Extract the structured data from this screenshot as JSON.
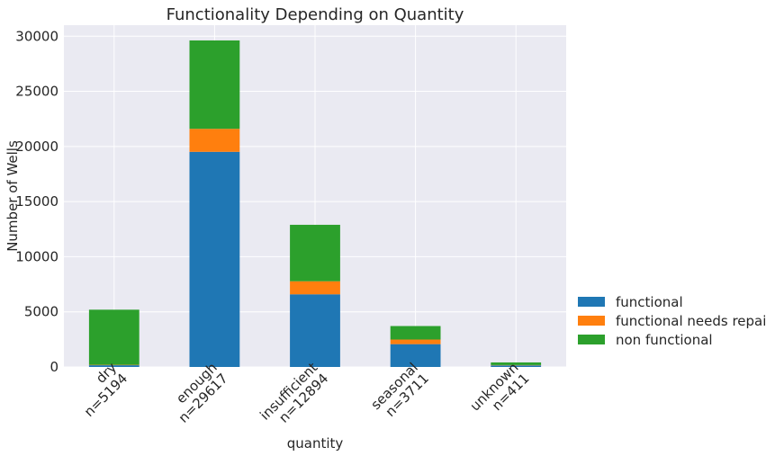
{
  "chart_data": {
    "type": "bar",
    "stacked": true,
    "title": "Functionality Depending on Quantity",
    "xlabel": "quantity",
    "ylabel": "Number of Wells",
    "categories": [
      "dry\nn=5194",
      "enough\nn=29617",
      "insufficient\nn=12894",
      "seasonal\nn=3711",
      "unknown\nn=411"
    ],
    "series": [
      {
        "name": "functional",
        "color": "#1f77b4",
        "values": [
          157,
          19514,
          6588,
          2069,
          144
        ]
      },
      {
        "name": "functional needs repair",
        "color": "#ff7f0e",
        "values": [
          37,
          2084,
          1185,
          417,
          28
        ]
      },
      {
        "name": "non functional",
        "color": "#2ca02c",
        "values": [
          5000,
          8019,
          5121,
          1225,
          239
        ]
      }
    ],
    "ylim": [
      0,
      31000
    ],
    "yticks": [
      0,
      5000,
      10000,
      15000,
      20000,
      25000,
      30000
    ],
    "grid": true,
    "legend_position": "lower-right-outside",
    "background": "#eaeaf2"
  }
}
